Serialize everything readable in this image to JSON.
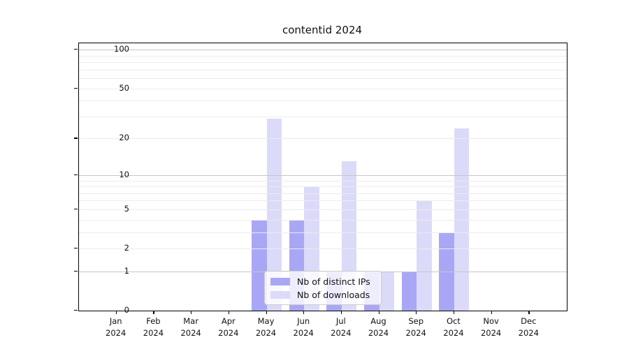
{
  "title": "contentid 2024",
  "chart_data": {
    "type": "bar",
    "title": "contentid 2024",
    "categories": [
      "Jan",
      "Feb",
      "Mar",
      "Apr",
      "May",
      "Jun",
      "Jul",
      "Aug",
      "Sep",
      "Oct",
      "Nov",
      "Dec"
    ],
    "year_label": "2024",
    "series": [
      {
        "name": "Nb of distinct IPs",
        "color": "#a9a7f5",
        "values": [
          0,
          0,
          0,
          0,
          4,
          4,
          1,
          1,
          1,
          3,
          0,
          0
        ]
      },
      {
        "name": "Nb of downloads",
        "color": "#dcdaf9",
        "values": [
          0,
          0,
          0,
          0,
          29,
          8,
          13,
          1,
          6,
          24,
          0,
          0
        ]
      }
    ],
    "xlabel": "",
    "ylabel": "",
    "yscale": "log1p",
    "ylim": [
      0,
      112
    ],
    "yticks": [
      100,
      50,
      20,
      10,
      5,
      2,
      1,
      0
    ],
    "grid_major": [
      1,
      10,
      100
    ],
    "grid_minor": [
      2,
      3,
      4,
      5,
      6,
      7,
      8,
      9,
      20,
      30,
      40,
      50,
      60,
      70,
      80,
      90
    ],
    "grid": "on",
    "legend_position": "lower center"
  }
}
